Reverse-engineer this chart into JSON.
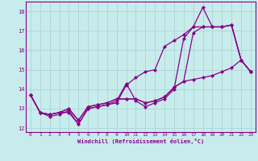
{
  "xlabel": "Windchill (Refroidissement éolien,°C)",
  "background_color": "#c8ecec",
  "grid_color": "#b0d8d8",
  "line_color": "#880088",
  "xlim": [
    -0.5,
    23.5
  ],
  "ylim": [
    11.8,
    18.5
  ],
  "yticks": [
    12,
    13,
    14,
    15,
    16,
    17,
    18
  ],
  "xticks": [
    0,
    1,
    2,
    3,
    4,
    5,
    6,
    7,
    8,
    9,
    10,
    11,
    12,
    13,
    14,
    15,
    16,
    17,
    18,
    19,
    20,
    21,
    22,
    23
  ],
  "lines": [
    [
      13.7,
      12.8,
      12.7,
      12.8,
      12.8,
      12.2,
      13.0,
      13.1,
      13.2,
      13.3,
      14.2,
      14.6,
      14.9,
      15.0,
      16.2,
      16.5,
      16.8,
      17.2,
      18.2,
      17.2,
      17.2,
      17.3,
      15.5,
      14.9
    ],
    [
      13.7,
      12.8,
      12.6,
      12.7,
      12.9,
      12.2,
      13.0,
      13.1,
      13.2,
      13.4,
      14.3,
      13.4,
      13.1,
      13.3,
      13.5,
      14.0,
      16.6,
      17.2,
      17.2,
      17.2,
      17.2,
      17.3,
      15.5,
      14.9
    ],
    [
      13.7,
      12.8,
      12.7,
      12.8,
      13.0,
      12.4,
      13.1,
      13.2,
      13.3,
      13.5,
      13.5,
      13.5,
      13.3,
      13.4,
      13.6,
      14.1,
      14.4,
      16.9,
      17.2,
      17.2,
      17.2,
      17.3,
      15.5,
      14.9
    ],
    [
      13.7,
      12.8,
      12.7,
      12.8,
      13.0,
      12.4,
      13.1,
      13.2,
      13.3,
      13.5,
      13.5,
      13.5,
      13.3,
      13.4,
      13.6,
      14.1,
      14.4,
      14.5,
      14.6,
      14.7,
      14.9,
      15.1,
      15.5,
      14.9
    ]
  ]
}
